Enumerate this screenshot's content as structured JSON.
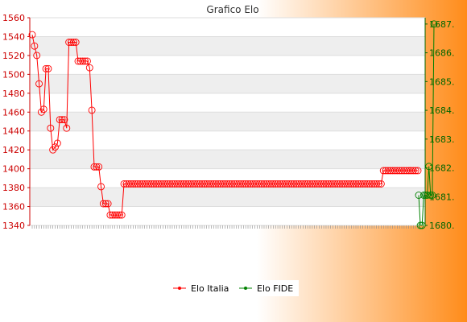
{
  "chart_data": {
    "type": "line",
    "title": "Grafico Elo",
    "legend_position": "bottom",
    "grid": true,
    "colors": {
      "background_left": "#ffffff",
      "background_right": "#ff8c1a",
      "series_italia": "#ff0000",
      "series_fide": "#008000",
      "band": "#eeeeee",
      "left_axis_text": "#cc0000",
      "right_axis_text": "#006600"
    },
    "y_left": {
      "ticks": [
        1340,
        1360,
        1380,
        1400,
        1420,
        1440,
        1460,
        1480,
        1500,
        1520,
        1540,
        1560
      ],
      "ylim": [
        1340,
        1560
      ]
    },
    "y_right": {
      "ticks": [
        "1680.",
        "1681.",
        "1682.",
        "1683.",
        "1684.",
        "1685.",
        "1686.",
        "1687."
      ],
      "ylim": [
        1680,
        1687.22
      ]
    },
    "series": [
      {
        "name": "Elo Italia",
        "axis": "left",
        "marker": "circle",
        "values": [
          1542,
          1530,
          1520,
          1490,
          1460,
          1463,
          1506,
          1506,
          1443,
          1420,
          1423,
          1427,
          1452,
          1452,
          1452,
          1443,
          1534,
          1534,
          1534,
          1534,
          1514,
          1514,
          1514,
          1514,
          1514,
          1507,
          1462,
          1402,
          1402,
          1402,
          1381,
          1363,
          1363,
          1363,
          1351,
          1351,
          1351,
          1351,
          1351,
          1351,
          1384,
          1384,
          1384,
          1384,
          1384,
          1384,
          1384,
          1384,
          1384,
          1384,
          1384,
          1384,
          1384,
          1384,
          1384,
          1384,
          1384,
          1384,
          1384,
          1384,
          1384,
          1384,
          1384,
          1384,
          1384,
          1384,
          1384,
          1384,
          1384,
          1384,
          1384,
          1384,
          1384,
          1384,
          1384,
          1384,
          1384,
          1384,
          1384,
          1384,
          1384,
          1384,
          1384,
          1384,
          1384,
          1384,
          1384,
          1384,
          1384,
          1384,
          1384,
          1384,
          1384,
          1384,
          1384,
          1384,
          1384,
          1384,
          1384,
          1384,
          1384,
          1384,
          1384,
          1384,
          1384,
          1384,
          1384,
          1384,
          1384,
          1384,
          1384,
          1384,
          1384,
          1384,
          1384,
          1384,
          1384,
          1384,
          1384,
          1384,
          1384,
          1384,
          1384,
          1384,
          1384,
          1384,
          1384,
          1384,
          1384,
          1384,
          1384,
          1384,
          1384,
          1384,
          1384,
          1384,
          1384,
          1384,
          1384,
          1384,
          1384,
          1384,
          1384,
          1384,
          1384,
          1384,
          1384,
          1384,
          1384,
          1384,
          1384,
          1384,
          1384,
          1398,
          1398,
          1398,
          1398,
          1398,
          1398,
          1398,
          1398,
          1398,
          1398,
          1398,
          1398,
          1398,
          1398,
          1398,
          1398
        ]
      },
      {
        "name": "Elo FIDE",
        "axis": "right",
        "marker": "circle",
        "values": [
          1681.05,
          1680.0,
          1680.0,
          1681.05,
          1681.05,
          1681.05,
          1682.05,
          1681.05,
          1681.05,
          1687.0
        ]
      }
    ]
  }
}
